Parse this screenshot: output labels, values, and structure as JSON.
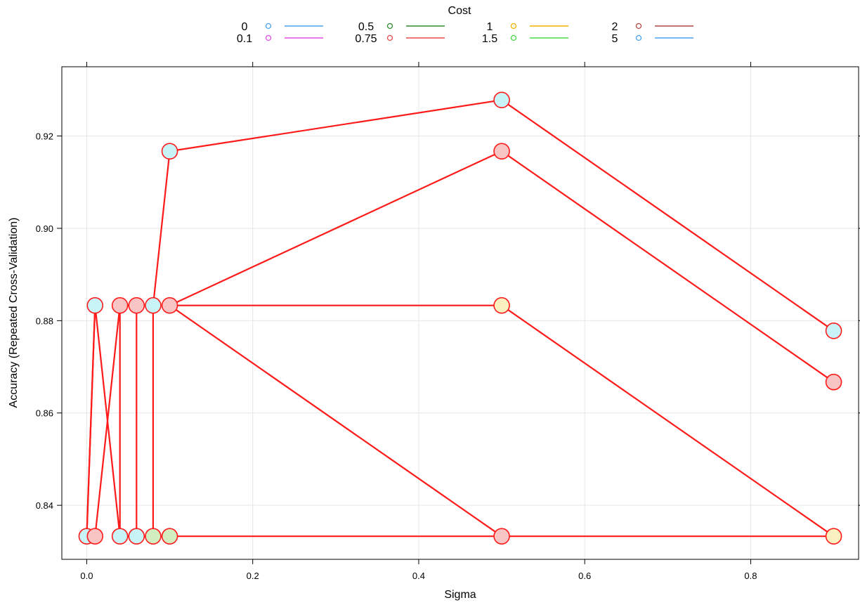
{
  "chart_data": {
    "type": "line",
    "xlabel": "Sigma",
    "ylabel": "Accuracy (Repeated Cross-Validation)",
    "xlim": [
      -0.03,
      0.93
    ],
    "ylim": [
      0.8283,
      0.935
    ],
    "x_ticks": [
      0.0,
      0.2,
      0.4,
      0.6,
      0.8
    ],
    "x_tick_labels": [
      "0.0",
      "0.2",
      "0.4",
      "0.6",
      "0.8"
    ],
    "y_ticks": [
      0.84,
      0.86,
      0.88,
      0.9,
      0.92
    ],
    "y_tick_labels": [
      "0.84",
      "0.86",
      "0.88",
      "0.90",
      "0.92"
    ],
    "grid": true,
    "legend_position": "top",
    "legend": {
      "title": "Cost",
      "entries": [
        {
          "label": "0",
          "color": "#4aa3f0"
        },
        {
          "label": "0.1",
          "color": "#e64ce6"
        },
        {
          "label": "0.5",
          "color": "#2e8b2e"
        },
        {
          "label": "0.75",
          "color": "#e84b4b"
        },
        {
          "label": "1",
          "color": "#f0b000"
        },
        {
          "label": "1.5",
          "color": "#44dd44"
        },
        {
          "label": "2",
          "color": "#b24747"
        },
        {
          "label": "5",
          "color": "#4aa3f0"
        }
      ]
    },
    "line_color": "#ff1a1a",
    "path": [
      {
        "x": 0.0,
        "y": 0.8333,
        "fill": "#c8f4f8"
      },
      {
        "x": 0.01,
        "y": 0.8833,
        "fill": "#c8f4f8"
      },
      {
        "x": 0.04,
        "y": 0.8333,
        "fill": "#c8f4f8"
      },
      {
        "x": 0.04,
        "y": 0.8833,
        "fill": "#f8c4c4"
      },
      {
        "x": 0.06,
        "y": 0.8833,
        "fill": "#f8c4c4"
      },
      {
        "x": 0.06,
        "y": 0.8333,
        "fill": "#c8f4f8"
      },
      {
        "x": 0.08,
        "y": 0.8333,
        "fill": "#d2edc0"
      },
      {
        "x": 0.08,
        "y": 0.8833,
        "fill": "#c8f4f8"
      },
      {
        "x": 0.1,
        "y": 0.9167,
        "fill": "#c8f4f8"
      },
      {
        "x": 0.5,
        "y": 0.9278,
        "fill": "#c8f4f8"
      },
      {
        "x": 0.9,
        "y": 0.8778,
        "fill": "#c8f4f8"
      }
    ],
    "segments": [
      [
        [
          0.0,
          0.8333
        ],
        [
          0.01,
          0.8833
        ],
        [
          0.04,
          0.8333
        ],
        [
          0.04,
          0.8833
        ],
        [
          0.06,
          0.8833
        ],
        [
          0.06,
          0.8333
        ],
        [
          0.08,
          0.8333
        ],
        [
          0.08,
          0.8833
        ],
        [
          0.1,
          0.9167
        ],
        [
          0.5,
          0.9278
        ],
        [
          0.9,
          0.8778
        ]
      ],
      [
        [
          0.0,
          0.8333
        ],
        [
          0.01,
          0.8833
        ]
      ],
      [
        [
          0.01,
          0.8333
        ],
        [
          0.0,
          0.8333
        ]
      ],
      [
        [
          0.01,
          0.8333
        ],
        [
          0.04,
          0.8833
        ]
      ],
      [
        [
          0.04,
          0.8333
        ],
        [
          0.9,
          0.8333
        ]
      ],
      [
        [
          0.1,
          0.8833
        ],
        [
          0.5,
          0.9167
        ],
        [
          0.9,
          0.8667
        ]
      ],
      [
        [
          0.1,
          0.8833
        ],
        [
          0.5,
          0.8833
        ],
        [
          0.9,
          0.8333
        ]
      ],
      [
        [
          0.1,
          0.8833
        ],
        [
          0.5,
          0.8333
        ]
      ]
    ],
    "points": [
      {
        "x": 0.0,
        "y": 0.8333,
        "fill": "#c8f4f8"
      },
      {
        "x": 0.01,
        "y": 0.8333,
        "fill": "#f8c4c4"
      },
      {
        "x": 0.04,
        "y": 0.8333,
        "fill": "#c8f4f8"
      },
      {
        "x": 0.06,
        "y": 0.8333,
        "fill": "#c8f4f8"
      },
      {
        "x": 0.08,
        "y": 0.8333,
        "fill": "#d2edc0"
      },
      {
        "x": 0.1,
        "y": 0.8333,
        "fill": "#d2edc0"
      },
      {
        "x": 0.5,
        "y": 0.8333,
        "fill": "#f8c4c4"
      },
      {
        "x": 0.9,
        "y": 0.8333,
        "fill": "#fbf0c0"
      },
      {
        "x": 0.01,
        "y": 0.8833,
        "fill": "#c8f4f8"
      },
      {
        "x": 0.04,
        "y": 0.8833,
        "fill": "#f8c4c4"
      },
      {
        "x": 0.06,
        "y": 0.8833,
        "fill": "#f8c4c4"
      },
      {
        "x": 0.08,
        "y": 0.8833,
        "fill": "#c8f4f8"
      },
      {
        "x": 0.1,
        "y": 0.8833,
        "fill": "#f8c4c4"
      },
      {
        "x": 0.5,
        "y": 0.8833,
        "fill": "#fbf0c0"
      },
      {
        "x": 0.1,
        "y": 0.9167,
        "fill": "#c8f4f8"
      },
      {
        "x": 0.5,
        "y": 0.9167,
        "fill": "#f8c4c4"
      },
      {
        "x": 0.5,
        "y": 0.9278,
        "fill": "#c8f4f8"
      },
      {
        "x": 0.9,
        "y": 0.8778,
        "fill": "#c8f4f8"
      },
      {
        "x": 0.9,
        "y": 0.8667,
        "fill": "#f8c4c4"
      }
    ]
  }
}
